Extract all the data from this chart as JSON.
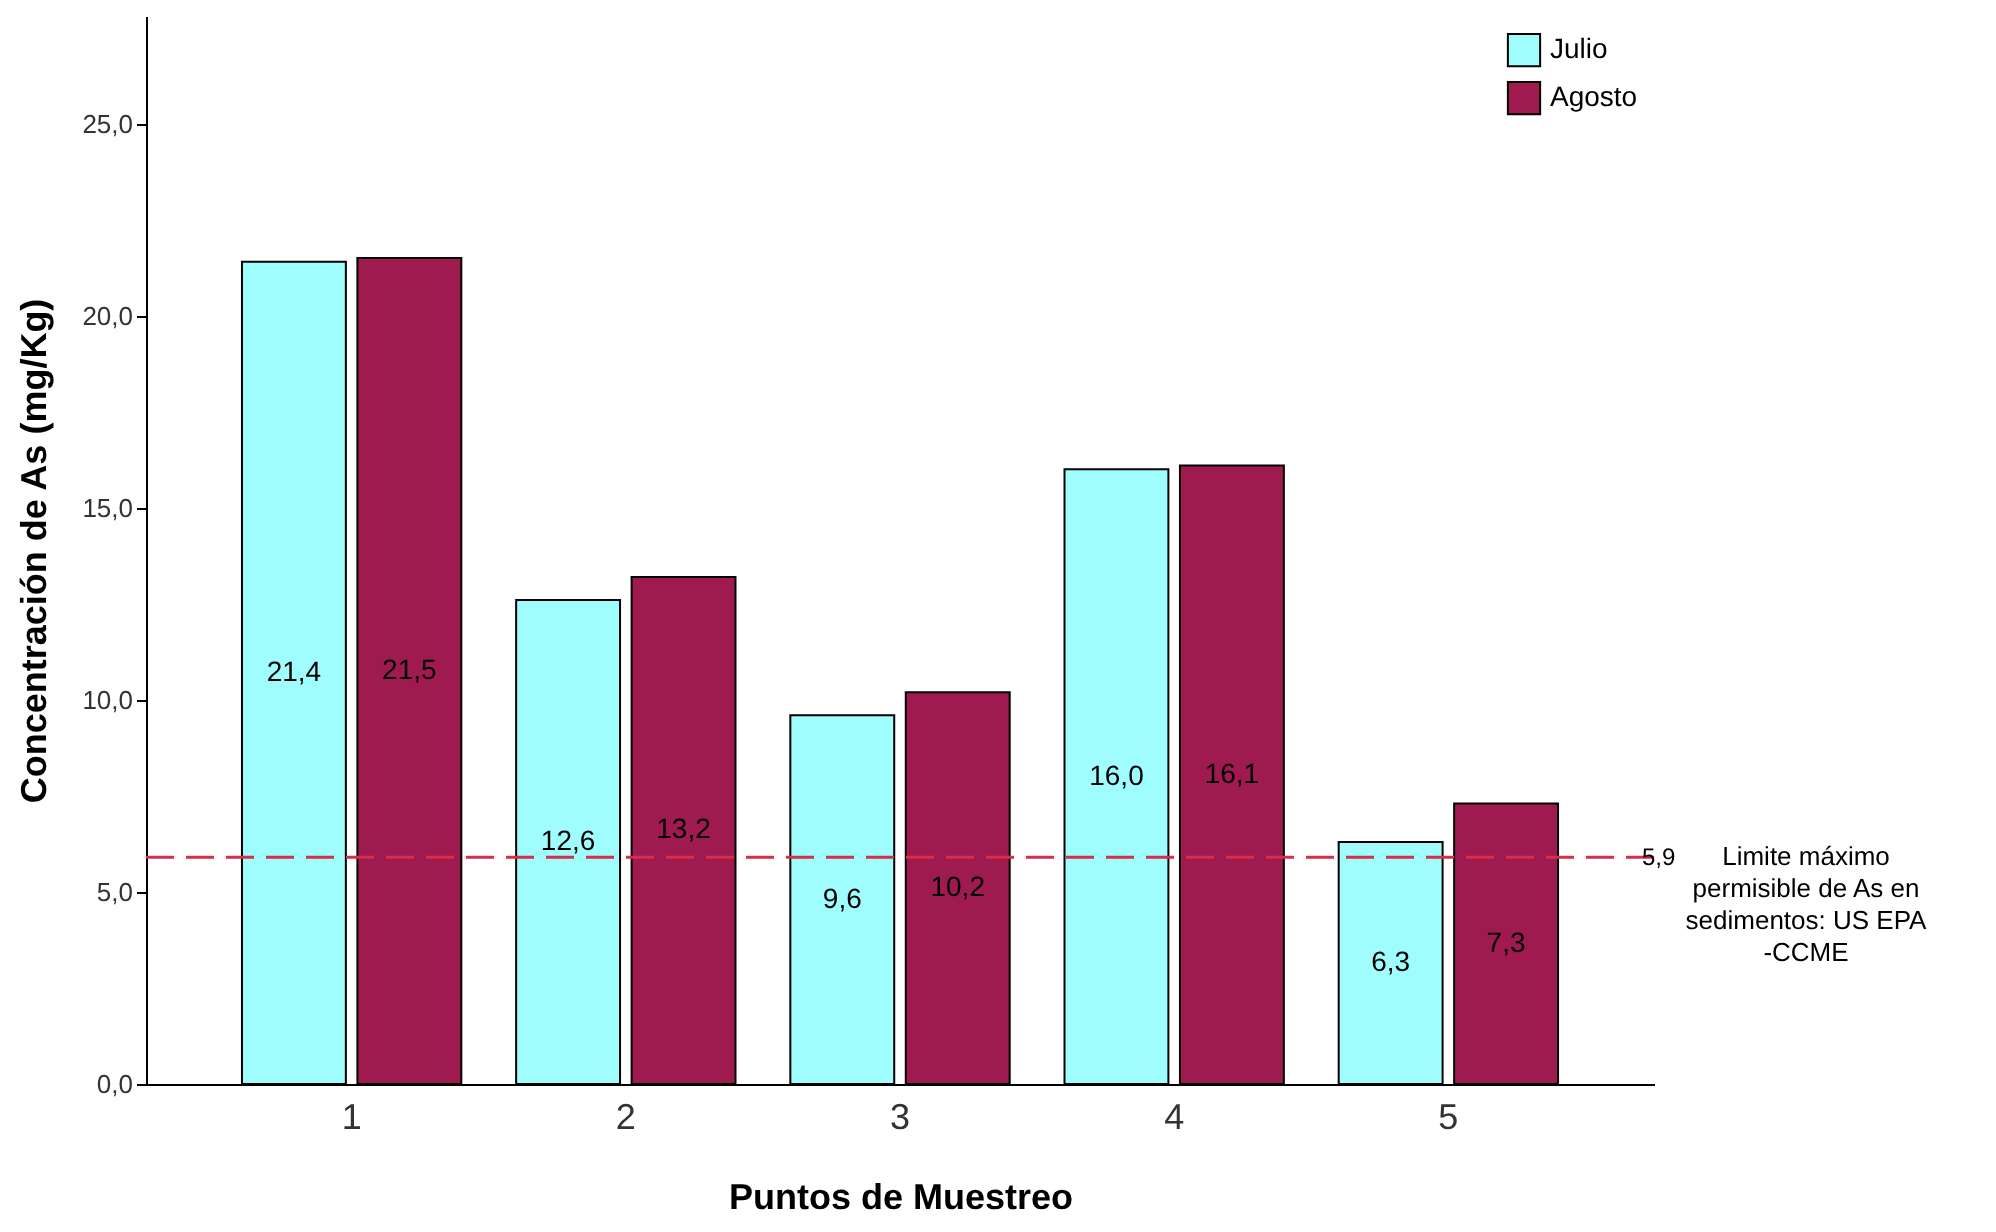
{
  "chart_data": {
    "type": "bar",
    "xlabel": "Puntos de Muestreo",
    "ylabel": "Concentración de As (mg/Kg)",
    "categories": [
      "1",
      "2",
      "3",
      "4",
      "5"
    ],
    "series": [
      {
        "name": "Julio",
        "color": "#a0fdfd",
        "values": [
          21.4,
          12.6,
          9.6,
          16.0,
          6.3
        ],
        "value_labels": [
          "21,4",
          "12,6",
          "9,6",
          "16,0",
          "6,3"
        ]
      },
      {
        "name": "Agosto",
        "color": "#9e1a4f",
        "values": [
          21.5,
          13.2,
          10.2,
          16.1,
          7.3
        ],
        "value_labels": [
          "21,5",
          "13,2",
          "10,2",
          "16,1",
          "7,3"
        ]
      }
    ],
    "ylim": [
      0,
      27.8
    ],
    "yticks": [
      {
        "value": 0,
        "label": "0,0"
      },
      {
        "value": 5,
        "label": "5,0"
      },
      {
        "value": 10,
        "label": "10,0"
      },
      {
        "value": 15,
        "label": "15,0"
      },
      {
        "value": 20,
        "label": "20,0"
      },
      {
        "value": 25,
        "label": "25,0"
      }
    ],
    "ref_lines": [
      {
        "axis": "y",
        "value": 5.9,
        "label": "5,9",
        "color": "#d62d4a",
        "line_style": "dashed"
      }
    ],
    "annotations": [
      "Limite máximo permisible de As en sedimentos: US EPA -CCME"
    ],
    "grid": false,
    "legend": "top right"
  }
}
